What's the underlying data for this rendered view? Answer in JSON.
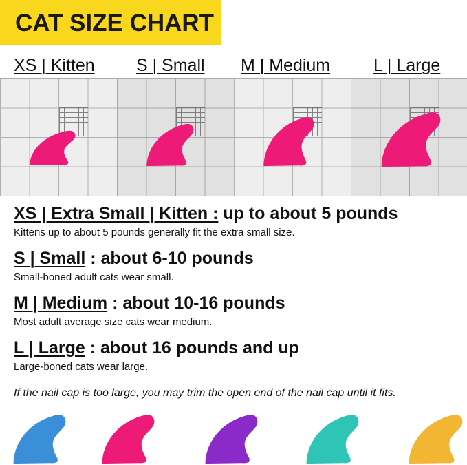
{
  "title": "CAT SIZE CHART",
  "size_labels": [
    "XS | Kitten",
    "S | Small",
    "M | Medium",
    "L | Large"
  ],
  "claw_color": "#ee1a78",
  "sizes": [
    {
      "code": "XS | Extra Small | Kitten :",
      "range": " up to about 5 pounds",
      "description": "Kittens up to about 5 pounds generally fit the extra small size."
    },
    {
      "code": "S | Small",
      "range": " : about 6-10 pounds",
      "description": "Small-boned adult cats wear small."
    },
    {
      "code": "M | Medium",
      "range": " : about 10-16 pounds",
      "description": "Most adult average size cats wear medium."
    },
    {
      "code": "L | Large",
      "range": " : about 16 pounds and up",
      "description": "Large-boned cats wear large."
    }
  ],
  "note": "If the nail cap is too large, you may trim the open end of the nail cap until it fits.",
  "color_swatches": [
    "#3a8fd8",
    "#ee1a78",
    "#8a2bc9",
    "#2ec4b6",
    "#f2b632"
  ]
}
